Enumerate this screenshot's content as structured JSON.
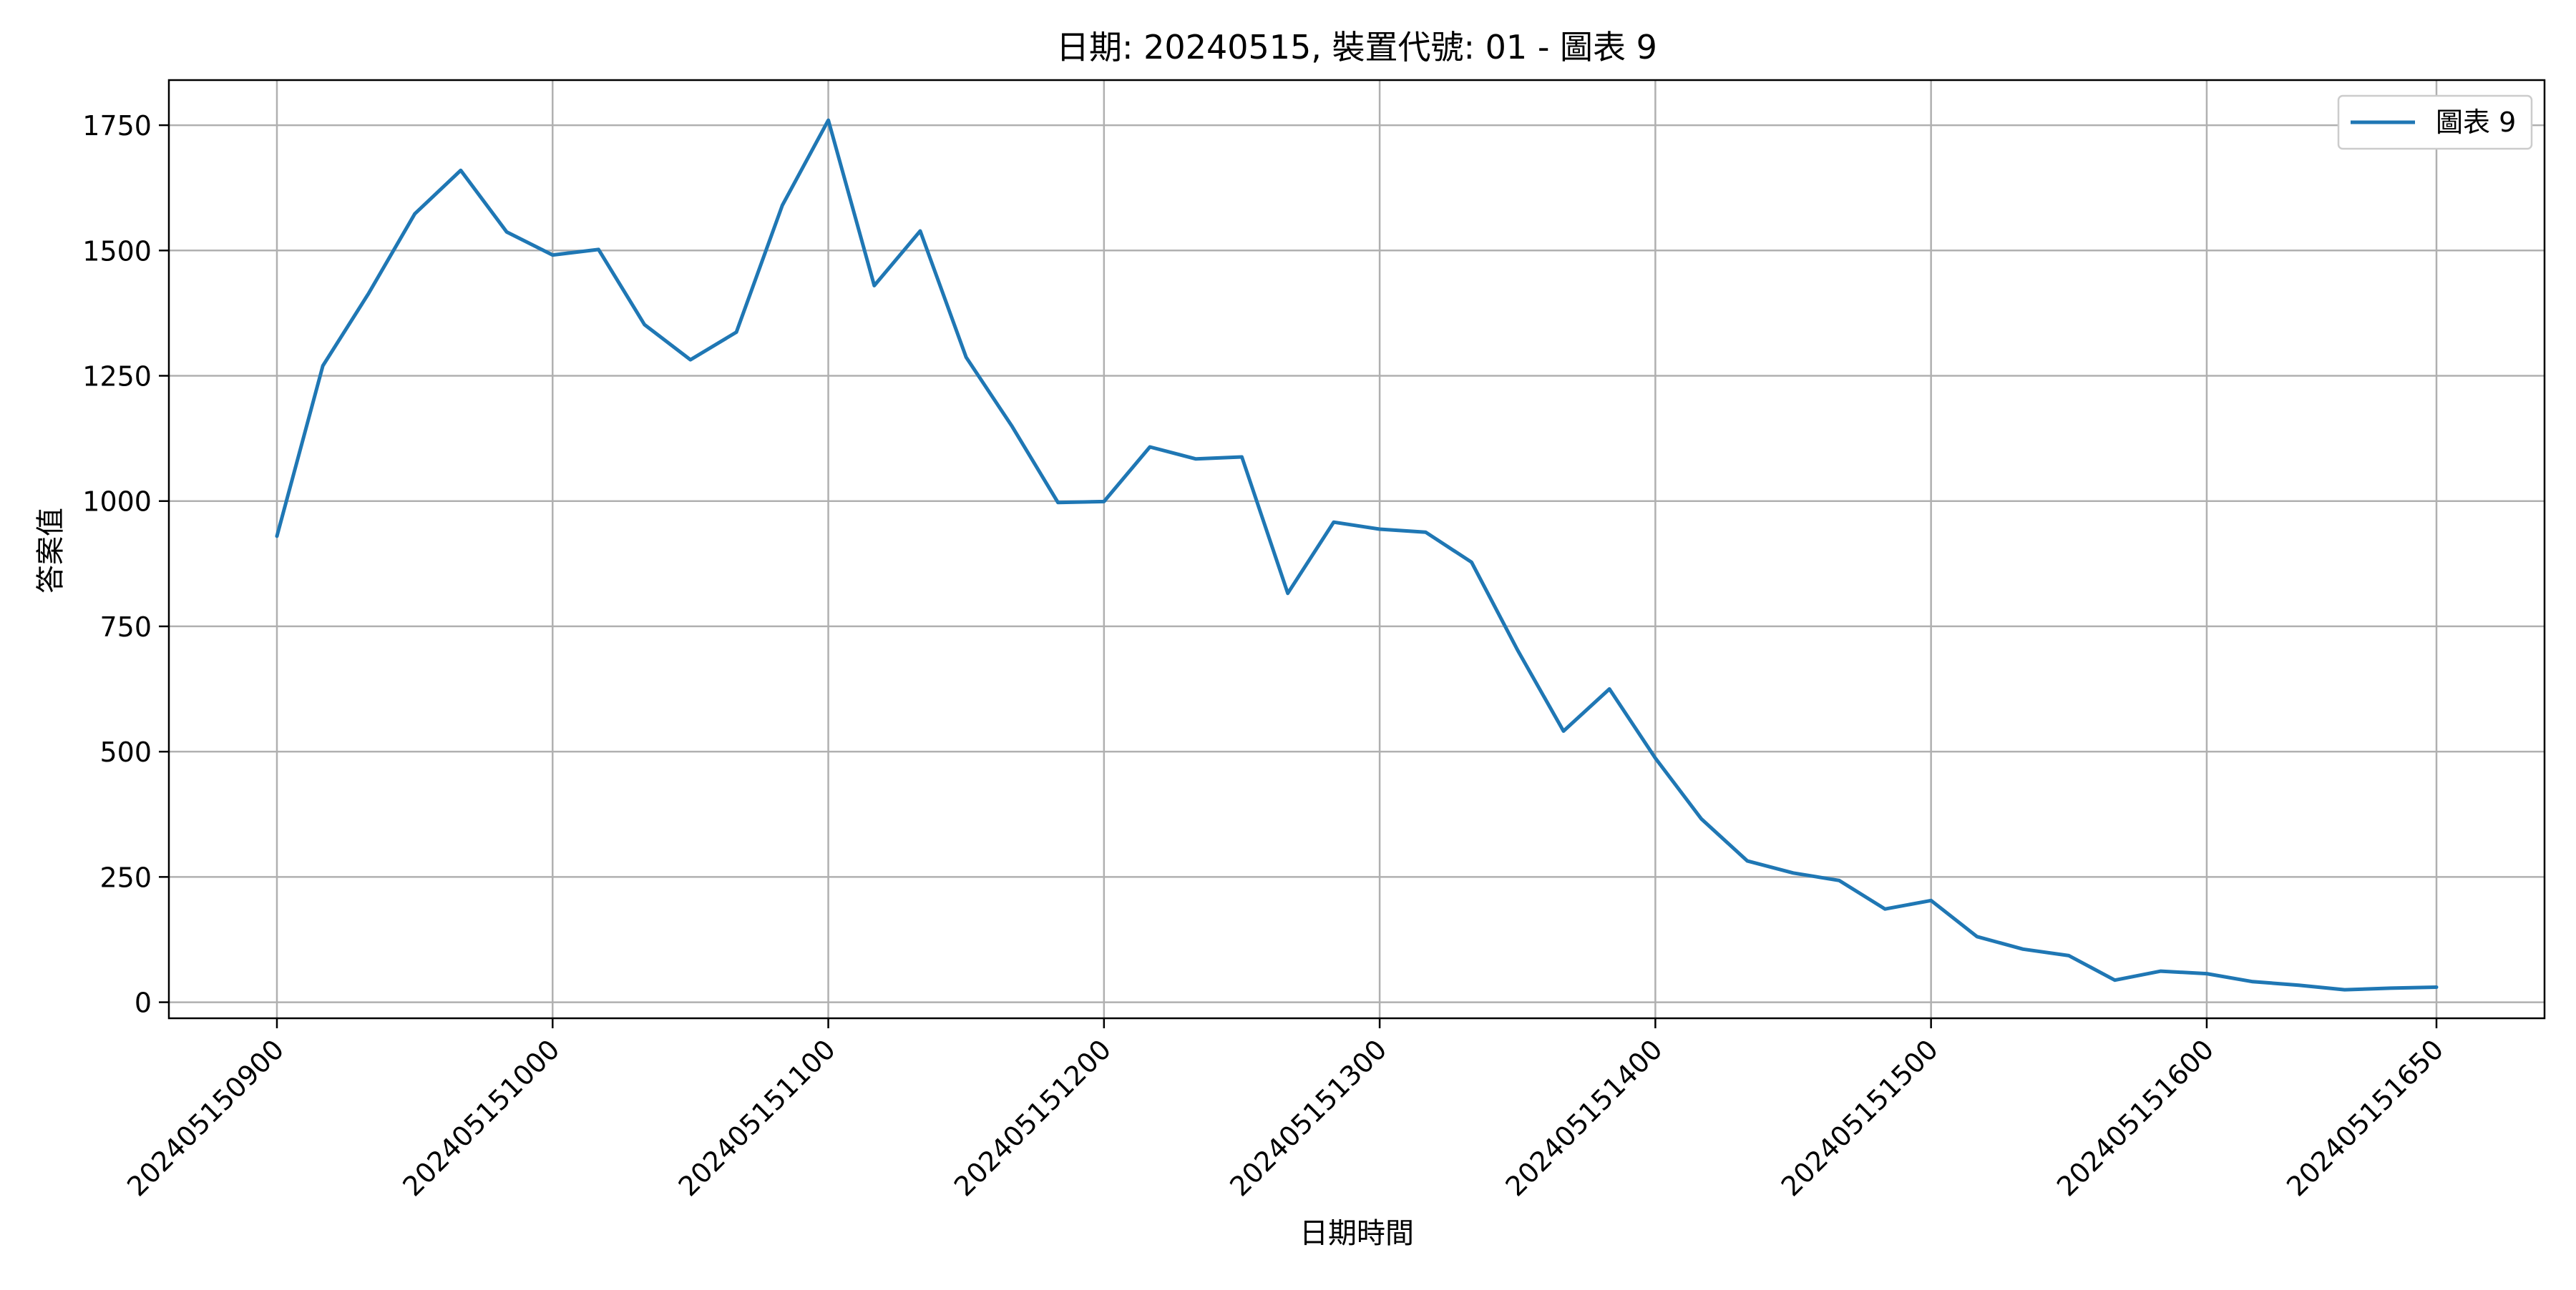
{
  "chart_data": {
    "type": "line",
    "title": "日期: 20240515, 裝置代號: 01 - 圖表 9",
    "xlabel": "日期時間",
    "ylabel": "答案值",
    "x_ticks": [
      "202405150900",
      "202405151000",
      "202405151100",
      "202405151200",
      "202405151300",
      "202405151400",
      "202405151500",
      "202405151600",
      "202405151650"
    ],
    "x_tick_positions": [
      0,
      6,
      12,
      18,
      24,
      30,
      36,
      42,
      47
    ],
    "ylim": [
      -32,
      1840
    ],
    "y_ticks": [
      0,
      250,
      500,
      750,
      1000,
      1250,
      1500,
      1750
    ],
    "grid": true,
    "legend_position": "top-right",
    "colors": {
      "line": "#1f77b4",
      "grid": "#b0b0b0",
      "axis": "#000000",
      "legend_border": "#cccccc"
    },
    "series": [
      {
        "name": "圖表 9",
        "values": [
          930,
          1270,
          1415,
          1573,
          1660,
          1537,
          1491,
          1502,
          1352,
          1282,
          1337,
          1590,
          1760,
          1430,
          1539,
          1287,
          1149,
          997,
          999,
          1108,
          1084,
          1088,
          816,
          958,
          944,
          938,
          878,
          703,
          541,
          625,
          487,
          366,
          282,
          258,
          243,
          186,
          203,
          131,
          106,
          93,
          44,
          62,
          57,
          41,
          34,
          25,
          28,
          30
        ]
      }
    ]
  }
}
